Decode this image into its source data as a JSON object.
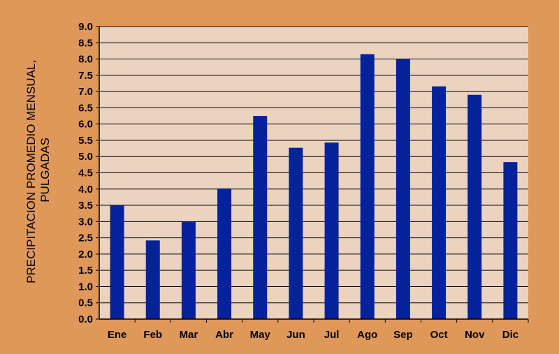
{
  "chart_data": {
    "type": "bar",
    "title": "",
    "xlabel": "",
    "ylabel_lines": [
      "PRECIPITACION PROMEDIO MENSUAL,",
      "PULGADAS"
    ],
    "categories": [
      "Ene",
      "Feb",
      "Mar",
      "Abr",
      "May",
      "Jun",
      "Jul",
      "Ago",
      "Sep",
      "Oct",
      "Nov",
      "Dic"
    ],
    "values": [
      3.5,
      2.42,
      3.0,
      4.02,
      6.25,
      5.27,
      5.43,
      8.15,
      8.0,
      7.16,
      6.9,
      4.83
    ],
    "ylim": [
      0,
      9
    ],
    "ytick_step": 0.5,
    "ytick_labels": [
      "0.0",
      "0.5",
      "1.0",
      "1.5",
      "2.0",
      "2.5",
      "3.0",
      "3.5",
      "4.0",
      "4.5",
      "5.0",
      "5.5",
      "6.0",
      "6.5",
      "7.0",
      "7.5",
      "8.0",
      "8.5",
      "9.0"
    ],
    "grid": true,
    "legend": "none"
  },
  "colors": {
    "background": "#E0975A",
    "plot_area": "#EBD3BF",
    "bar": "#04239B",
    "grid": "#000000",
    "text": "#000000"
  }
}
